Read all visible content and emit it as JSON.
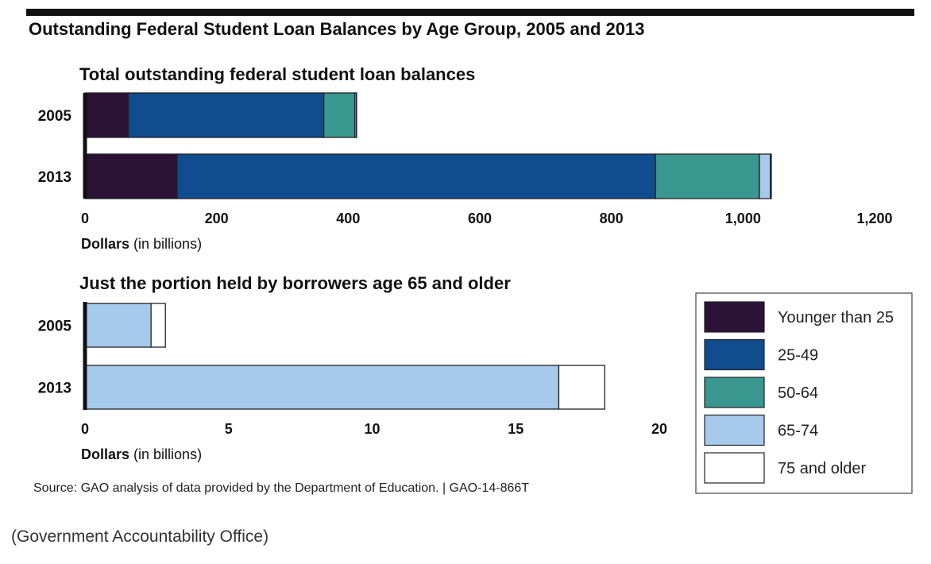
{
  "title": "Outstanding Federal Student Loan Balances by Age Group, 2005 and 2013",
  "caption": "(Government Accountability Office)",
  "source": "Source: GAO analysis of data provided by the Department of Education.  |  GAO-14-866T",
  "legend": [
    {
      "name": "Younger than 25",
      "color": "#2b1236"
    },
    {
      "name": "25-49",
      "color": "#0f4d8e"
    },
    {
      "name": "50-64",
      "color": "#3a978f"
    },
    {
      "name": "65-74",
      "color": "#a7c9ec"
    },
    {
      "name": "75 and older",
      "color": "#ffffff"
    }
  ],
  "chart_data": [
    {
      "type": "bar",
      "orientation": "horizontal",
      "stacked": true,
      "title": "Total outstanding federal student loan balances",
      "categories": [
        "2005",
        "2013"
      ],
      "xlabel": "Dollars",
      "xlabel_note": "(in billions)",
      "xlim": [
        0,
        1200
      ],
      "xticks": [
        0,
        200,
        400,
        600,
        800,
        1000,
        1200
      ],
      "xtick_labels": [
        "0",
        "200",
        "400",
        "600",
        "800",
        "1,000",
        "1,200"
      ],
      "series": [
        {
          "name": "Younger than 25",
          "color": "#2b1236",
          "values": [
            66,
            140
          ]
        },
        {
          "name": "25-49",
          "color": "#0f4d8e",
          "values": [
            297,
            727
          ]
        },
        {
          "name": "50-64",
          "color": "#3a978f",
          "values": [
            47,
            158
          ]
        },
        {
          "name": "65-74",
          "color": "#a7c9ec",
          "values": [
            2.3,
            16.5
          ]
        },
        {
          "name": "75 and older",
          "color": "#ffffff",
          "values": [
            0.5,
            1.6
          ]
        }
      ]
    },
    {
      "type": "bar",
      "orientation": "horizontal",
      "stacked": true,
      "title": "Just the portion held by borrowers age 65 and older",
      "categories": [
        "2005",
        "2013"
      ],
      "xlabel": "Dollars",
      "xlabel_note": "(in billions)",
      "xlim": [
        0,
        20
      ],
      "xticks": [
        0,
        5,
        10,
        15,
        20
      ],
      "xtick_labels": [
        "0",
        "5",
        "10",
        "15",
        "20"
      ],
      "series": [
        {
          "name": "65-74",
          "color": "#a7c9ec",
          "values": [
            2.3,
            16.5
          ]
        },
        {
          "name": "75 and older",
          "color": "#ffffff",
          "values": [
            0.5,
            1.6
          ]
        }
      ]
    }
  ]
}
